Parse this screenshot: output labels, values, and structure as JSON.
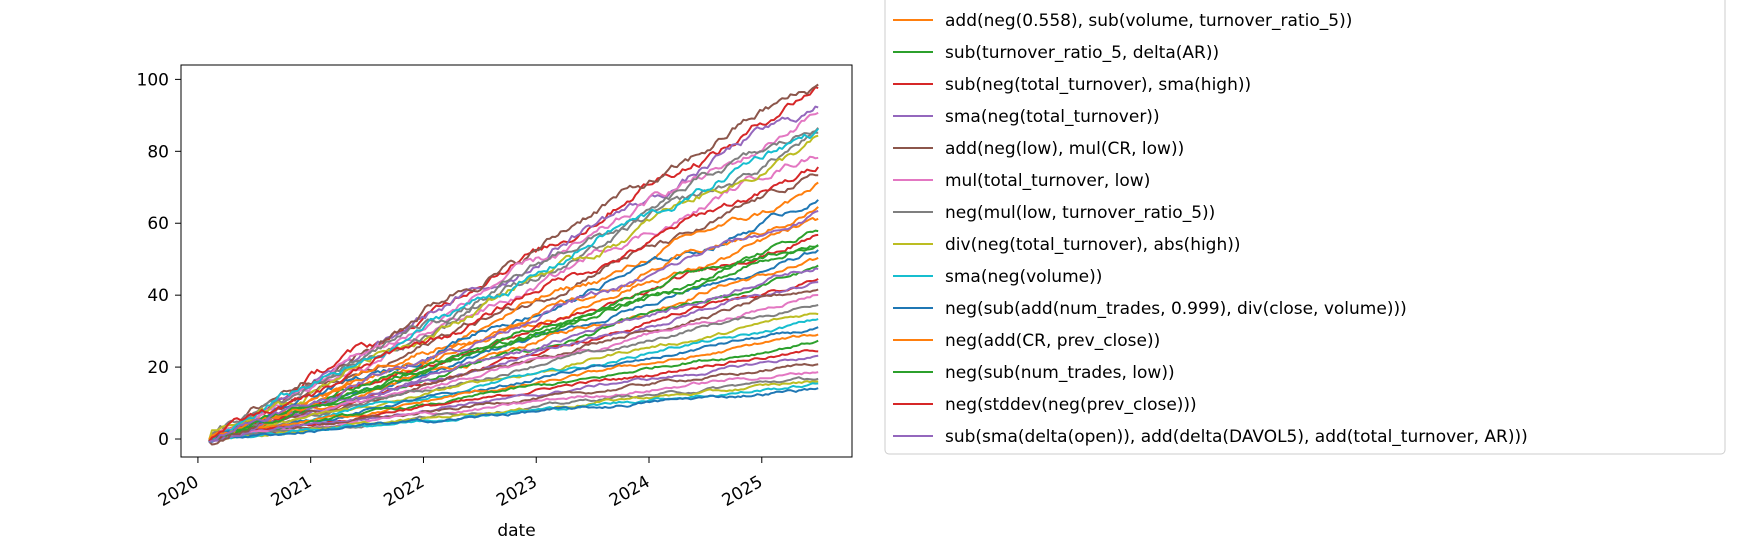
{
  "chart_data": {
    "type": "line",
    "xlabel": "date",
    "ylabel": "",
    "title": "",
    "xlim": [
      2019.85,
      2025.8
    ],
    "ylim": [
      -5,
      104
    ],
    "x_ticks": [
      "2020",
      "2021",
      "2022",
      "2023",
      "2024",
      "2025"
    ],
    "y_ticks": [
      0,
      20,
      40,
      60,
      80,
      100
    ],
    "x_start": 2020.1,
    "x_end": 2025.5,
    "grid": false,
    "legend_position": "outside-right",
    "legend_clipped_entry": "…(…)",
    "series": [
      {
        "name": "add(neg(0.558), sub(volume, turnover_ratio_5))",
        "color": "#ff7f0e",
        "final_value": 70
      },
      {
        "name": "sub(turnover_ratio_5, delta(AR))",
        "color": "#2ca02c",
        "final_value": 58
      },
      {
        "name": "sub(neg(total_turnover), sma(high))",
        "color": "#d62728",
        "final_value": 97
      },
      {
        "name": "sma(neg(total_turnover))",
        "color": "#9467bd",
        "final_value": 93
      },
      {
        "name": "add(neg(low), mul(CR, low))",
        "color": "#8c564b",
        "final_value": 99
      },
      {
        "name": "mul(total_turnover, low)",
        "color": "#e377c2",
        "final_value": 90
      },
      {
        "name": "neg(mul(low, turnover_ratio_5))",
        "color": "#7f7f7f",
        "final_value": 88
      },
      {
        "name": "div(neg(total_turnover), abs(high))",
        "color": "#bcbd22",
        "final_value": 83
      },
      {
        "name": "sma(neg(volume))",
        "color": "#17becf",
        "final_value": 86
      },
      {
        "name": "neg(sub(add(num_trades, 0.999), div(close, volume)))",
        "color": "#1f77b4",
        "final_value": 66
      },
      {
        "name": "neg(add(CR, prev_close))",
        "color": "#ff7f0e",
        "final_value": 64
      },
      {
        "name": "neg(sub(num_trades, low))",
        "color": "#2ca02c",
        "final_value": 55
      },
      {
        "name": "neg(stddev(neg(prev_close)))",
        "color": "#d62728",
        "final_value": 76
      },
      {
        "name": "sub(sma(delta(open)), add(delta(DAVOL5), add(total_turnover, AR)))",
        "color": "#9467bd",
        "final_value": 63
      }
    ],
    "unlabeled_series_final_values": [
      52,
      50,
      47,
      45,
      44,
      42,
      40,
      38,
      35,
      33,
      31,
      29,
      27,
      25,
      23,
      21,
      19,
      17,
      16,
      15,
      14,
      60,
      54,
      57,
      48,
      73,
      80,
      84
    ],
    "unlabeled_series_colors": [
      "#1f77b4",
      "#ff7f0e",
      "#2ca02c",
      "#d62728",
      "#9467bd",
      "#8c564b",
      "#e377c2",
      "#7f7f7f",
      "#bcbd22",
      "#17becf"
    ]
  }
}
